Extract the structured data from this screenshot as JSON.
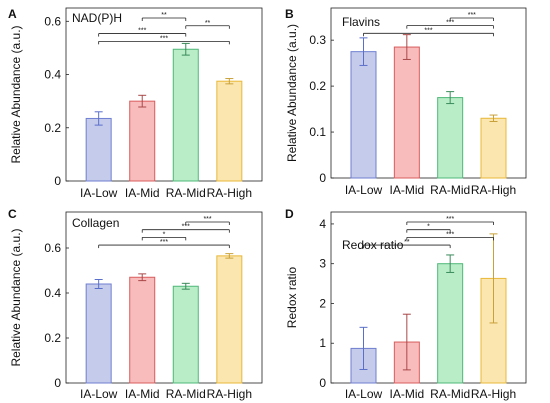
{
  "chart_data": [
    {
      "panel_letter": "A",
      "type": "bar",
      "title": "NAD(P)H",
      "ylabel": "Relative Abundance (a.u.)",
      "categories": [
        "IA-Low",
        "IA-Mid",
        "RA-Mid",
        "RA-High"
      ],
      "values": [
        0.235,
        0.3,
        0.495,
        0.375
      ],
      "errors": [
        0.025,
        0.022,
        0.022,
        0.01
      ],
      "ylim": [
        0,
        0.65
      ],
      "yticks": [
        "0",
        "0.2",
        "0.4",
        "0.6"
      ],
      "significance": [
        {
          "from": 1,
          "to": 2,
          "label": "**"
        },
        {
          "from": 2,
          "to": 3,
          "label": "**"
        },
        {
          "from": 0,
          "to": 2,
          "label": "***"
        },
        {
          "from": 0,
          "to": 3,
          "label": "***"
        }
      ]
    },
    {
      "panel_letter": "B",
      "type": "bar",
      "title": "Flavins",
      "ylabel": "Relative Abundance (a.u.)",
      "categories": [
        "IA-Low",
        "IA-Mid",
        "RA-Mid",
        "RA-High"
      ],
      "values": [
        0.275,
        0.285,
        0.175,
        0.13
      ],
      "errors": [
        0.03,
        0.027,
        0.013,
        0.007
      ],
      "ylim": [
        0,
        0.37
      ],
      "yticks": [
        "0",
        "0.1",
        "0.2",
        "0.3"
      ],
      "significance": [
        {
          "from": 2,
          "to": 3,
          "label": "***"
        },
        {
          "from": 1,
          "to": 3,
          "label": "***"
        },
        {
          "from": 0,
          "to": 3,
          "label": "***"
        }
      ]
    },
    {
      "panel_letter": "C",
      "type": "bar",
      "title": "Collagen",
      "ylabel": "Relative Abundance (a.u.)",
      "categories": [
        "IA-Low",
        "IA-Mid",
        "RA-Mid",
        "RA-High"
      ],
      "values": [
        0.44,
        0.47,
        0.43,
        0.565
      ],
      "errors": [
        0.02,
        0.015,
        0.013,
        0.01
      ],
      "ylim": [
        0,
        0.76
      ],
      "yticks": [
        "0",
        "0.2",
        "0.4",
        "0.6"
      ],
      "significance": [
        {
          "from": 2,
          "to": 3,
          "label": "***"
        },
        {
          "from": 1,
          "to": 3,
          "label": "***"
        },
        {
          "from": 1,
          "to": 2,
          "label": "*"
        },
        {
          "from": 0,
          "to": 3,
          "label": "***"
        }
      ]
    },
    {
      "panel_letter": "D",
      "type": "bar",
      "title": "Redox ratio",
      "ylabel": "Redox ratio",
      "categories": [
        "IA-Low",
        "IA-Mid",
        "RA-Mid",
        "RA-High"
      ],
      "values": [
        0.87,
        1.03,
        3.0,
        2.63
      ],
      "errors": [
        0.53,
        0.7,
        0.22,
        1.12
      ],
      "ylim": [
        0,
        4.3
      ],
      "yticks": [
        "0",
        "1",
        "2",
        "3",
        "4"
      ],
      "significance": [
        {
          "from": 1,
          "to": 3,
          "label": "***"
        },
        {
          "from": 1,
          "to": 2,
          "label": "*"
        },
        {
          "from": 1,
          "to": 3,
          "label": "***"
        },
        {
          "from": 0,
          "to": 2,
          "label": "**"
        }
      ]
    }
  ],
  "colors": {
    "fills": [
      "#c5cbeb",
      "#f8bcbc",
      "#b8edc8",
      "#fbe6b0"
    ],
    "strokes": [
      "#6f7fd0",
      "#d95c5c",
      "#4fb878",
      "#e8b838"
    ],
    "errorbars": [
      "#5a6fc9",
      "#a94848",
      "#3a8a5a",
      "#c9a13a"
    ]
  }
}
